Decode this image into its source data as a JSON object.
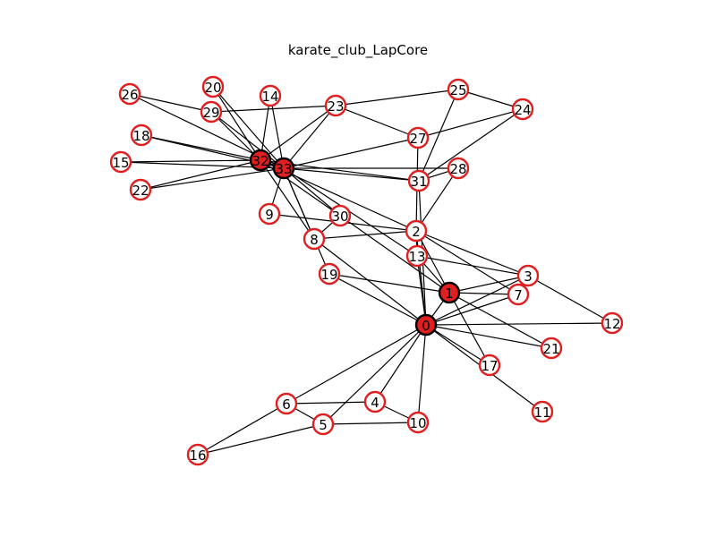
{
  "title": "karate_club_LapCore",
  "colors": {
    "edge": "#000000",
    "node_border": "#e02020",
    "node_fill": "#ffffff",
    "core_fill": "#e02020",
    "core_border": "#000000"
  },
  "graph": {
    "nodes": [
      "0",
      "1",
      "2",
      "3",
      "4",
      "5",
      "6",
      "7",
      "8",
      "9",
      "10",
      "11",
      "12",
      "13",
      "14",
      "15",
      "16",
      "17",
      "18",
      "19",
      "20",
      "21",
      "22",
      "23",
      "24",
      "25",
      "26",
      "27",
      "28",
      "29",
      "30",
      "31",
      "32",
      "33"
    ],
    "core_nodes": [
      "0",
      "1",
      "32",
      "33"
    ],
    "edges": [
      [
        "0",
        "1"
      ],
      [
        "0",
        "2"
      ],
      [
        "0",
        "3"
      ],
      [
        "0",
        "4"
      ],
      [
        "0",
        "5"
      ],
      [
        "0",
        "6"
      ],
      [
        "0",
        "7"
      ],
      [
        "0",
        "8"
      ],
      [
        "0",
        "10"
      ],
      [
        "0",
        "11"
      ],
      [
        "0",
        "12"
      ],
      [
        "0",
        "13"
      ],
      [
        "0",
        "17"
      ],
      [
        "0",
        "19"
      ],
      [
        "0",
        "21"
      ],
      [
        "0",
        "31"
      ],
      [
        "1",
        "2"
      ],
      [
        "1",
        "3"
      ],
      [
        "1",
        "7"
      ],
      [
        "1",
        "13"
      ],
      [
        "1",
        "17"
      ],
      [
        "1",
        "19"
      ],
      [
        "1",
        "21"
      ],
      [
        "1",
        "30"
      ],
      [
        "2",
        "3"
      ],
      [
        "2",
        "7"
      ],
      [
        "2",
        "8"
      ],
      [
        "2",
        "9"
      ],
      [
        "2",
        "13"
      ],
      [
        "2",
        "27"
      ],
      [
        "2",
        "28"
      ],
      [
        "2",
        "32"
      ],
      [
        "3",
        "7"
      ],
      [
        "3",
        "12"
      ],
      [
        "3",
        "13"
      ],
      [
        "4",
        "6"
      ],
      [
        "4",
        "10"
      ],
      [
        "5",
        "6"
      ],
      [
        "5",
        "10"
      ],
      [
        "5",
        "16"
      ],
      [
        "6",
        "16"
      ],
      [
        "8",
        "30"
      ],
      [
        "8",
        "32"
      ],
      [
        "8",
        "33"
      ],
      [
        "9",
        "33"
      ],
      [
        "13",
        "33"
      ],
      [
        "14",
        "32"
      ],
      [
        "14",
        "33"
      ],
      [
        "15",
        "32"
      ],
      [
        "15",
        "33"
      ],
      [
        "18",
        "32"
      ],
      [
        "18",
        "33"
      ],
      [
        "19",
        "33"
      ],
      [
        "20",
        "32"
      ],
      [
        "20",
        "33"
      ],
      [
        "22",
        "32"
      ],
      [
        "22",
        "33"
      ],
      [
        "23",
        "25"
      ],
      [
        "23",
        "27"
      ],
      [
        "23",
        "29"
      ],
      [
        "23",
        "32"
      ],
      [
        "23",
        "33"
      ],
      [
        "24",
        "25"
      ],
      [
        "24",
        "27"
      ],
      [
        "24",
        "31"
      ],
      [
        "25",
        "31"
      ],
      [
        "26",
        "29"
      ],
      [
        "26",
        "33"
      ],
      [
        "27",
        "33"
      ],
      [
        "28",
        "31"
      ],
      [
        "28",
        "33"
      ],
      [
        "29",
        "32"
      ],
      [
        "29",
        "33"
      ],
      [
        "30",
        "32"
      ],
      [
        "30",
        "33"
      ],
      [
        "31",
        "32"
      ],
      [
        "31",
        "33"
      ],
      [
        "32",
        "33"
      ]
    ]
  }
}
